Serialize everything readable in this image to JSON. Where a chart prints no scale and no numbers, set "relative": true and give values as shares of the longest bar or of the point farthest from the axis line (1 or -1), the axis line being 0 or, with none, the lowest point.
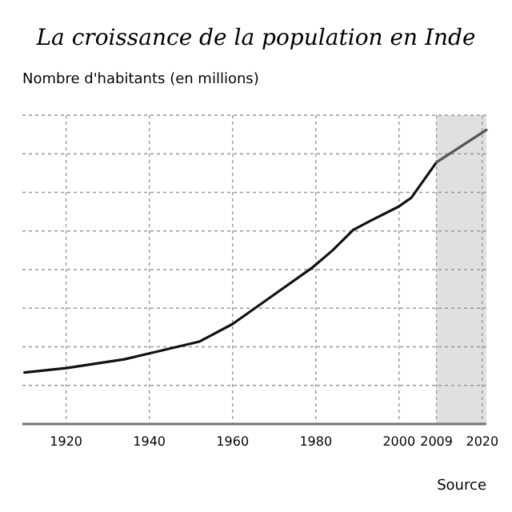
{
  "chart_data": {
    "type": "line",
    "title": "La croissance de la population en Inde",
    "ylabel": "Nombre d'habitants (en millions)",
    "annotations": [
      "Source"
    ],
    "relative": true,
    "grid": true,
    "xlim": [
      1909.5,
      2021
    ],
    "xticks": [
      1920,
      1940,
      1960,
      1980,
      2000,
      2009,
      2020
    ],
    "bands": [
      {
        "axis": "x",
        "from": 2009,
        "to": 2021,
        "color": "#e0e0e0"
      }
    ],
    "series": [
      {
        "color": "#111111",
        "x": [
          1910,
          1920,
          1934,
          1940,
          1952,
          1960,
          1970,
          1979,
          1984,
          1989,
          1993,
          2000,
          2003,
          2006,
          2009
        ],
        "values": [
          0.175,
          0.19,
          0.22,
          0.24,
          0.28,
          0.34,
          0.44,
          0.53,
          0.59,
          0.66,
          0.69,
          0.74,
          0.77,
          0.83,
          0.89
        ]
      },
      {
        "color": "#555555",
        "x": [
          2009,
          2021
        ],
        "values": [
          0.89,
          1
        ]
      }
    ]
  }
}
